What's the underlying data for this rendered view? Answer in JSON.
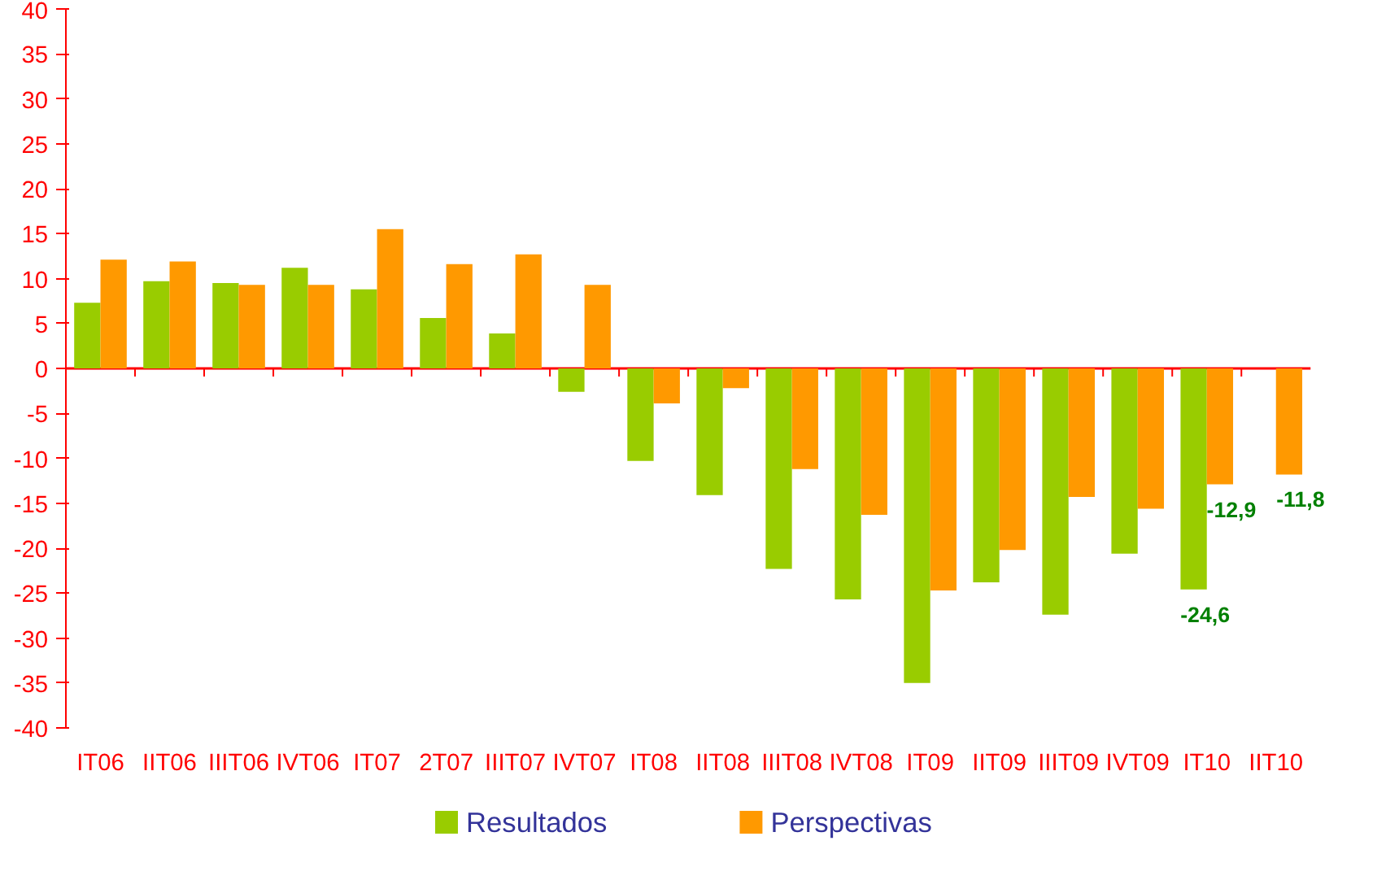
{
  "chart_data": {
    "type": "bar",
    "categories": [
      "IT06",
      "IIT06",
      "IIIT06",
      "IVT06",
      "IT07",
      "2T07",
      "IIIT07",
      "IVT07",
      "IT08",
      "IIT08",
      "IIIT08",
      "IVT08",
      "IT09",
      "IIT09",
      "IIIT09",
      "IVT09",
      "IT10",
      "IIT10"
    ],
    "series": [
      {
        "name": "Resultados",
        "color": "#99cc00",
        "values": [
          7.3,
          9.7,
          9.5,
          11.2,
          8.8,
          5.6,
          3.9,
          -2.6,
          -10.3,
          -14.1,
          -22.3,
          -25.7,
          -35,
          -23.8,
          -27.4,
          -20.6,
          -24.6,
          null
        ],
        "value_labels": [
          null,
          null,
          null,
          null,
          null,
          null,
          null,
          null,
          null,
          null,
          null,
          null,
          null,
          null,
          null,
          null,
          "-24,6",
          null
        ]
      },
      {
        "name": "Perspectivas",
        "color": "#ff9900",
        "values": [
          12.1,
          11.9,
          9.3,
          9.3,
          15.5,
          11.6,
          12.7,
          9.3,
          -3.9,
          -2.2,
          -11.2,
          -16.3,
          -24.7,
          -20.2,
          -14.3,
          -15.6,
          -12.9,
          -11.8
        ],
        "value_labels": [
          null,
          null,
          null,
          null,
          null,
          null,
          null,
          null,
          null,
          null,
          null,
          null,
          null,
          null,
          null,
          null,
          "-12,9",
          "-11,8"
        ]
      }
    ],
    "ylim": [
      -40,
      40
    ],
    "yticks": [
      -40,
      -35,
      -30,
      -25,
      -20,
      -15,
      -10,
      -5,
      0,
      5,
      10,
      15,
      20,
      25,
      30,
      35,
      40
    ],
    "ref_lines": [
      {
        "axis": "y",
        "value": 0,
        "color": "#ff0000"
      }
    ],
    "grid": false,
    "legend": "bottom"
  }
}
